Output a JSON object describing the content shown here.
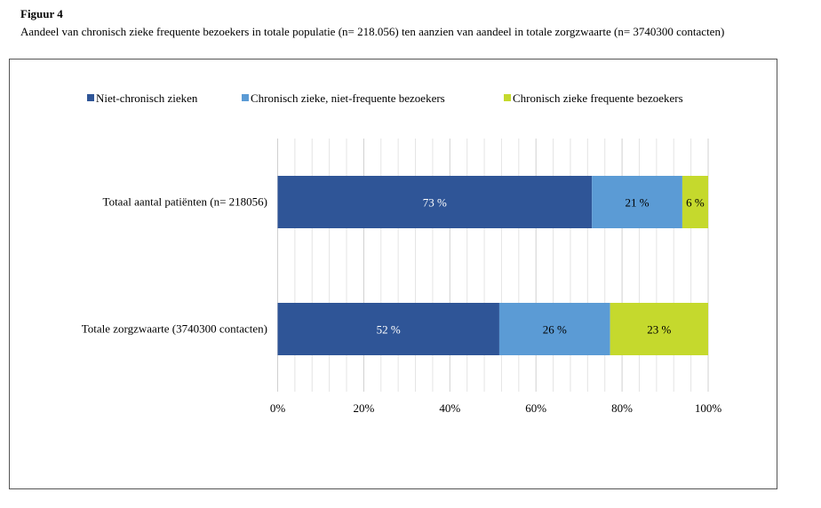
{
  "figure_label": "Figuur 4",
  "caption": "Aandeel van chronisch zieke frequente bezoekers in totale populatie (n= 218.056) ten aanzien van aandeel in totale zorgzwaarte (n= 3740300 contacten)",
  "chart_data": {
    "type": "bar",
    "orientation": "horizontal",
    "stacked": "percent",
    "categories": [
      "Totaal aantal patiënten (n= 218056)",
      "Totale zorgzwaarte (3740300 contacten)"
    ],
    "series": [
      {
        "name": "Niet-chronisch zieken",
        "color": "#2F5597",
        "values": [
          73,
          52
        ],
        "labels": [
          "73 %",
          "52 %"
        ],
        "label_color": "#ffffff"
      },
      {
        "name": "Chronisch zieke, niet-frequente bezoekers",
        "color": "#5B9BD5",
        "values": [
          21,
          26
        ],
        "labels": [
          "21 %",
          "26 %"
        ],
        "label_color": "#000000"
      },
      {
        "name": "Chronisch zieke frequente bezoekers",
        "color": "#C5D92D",
        "values": [
          6,
          23
        ],
        "labels": [
          "6 %",
          "23 %"
        ],
        "label_color": "#000000"
      }
    ],
    "xlim": [
      0,
      100
    ],
    "x_ticks": [
      "0%",
      "20%",
      "40%",
      "60%",
      "80%",
      "100%"
    ],
    "grid": "vertical, minor every 4%",
    "legend_position": "top"
  }
}
